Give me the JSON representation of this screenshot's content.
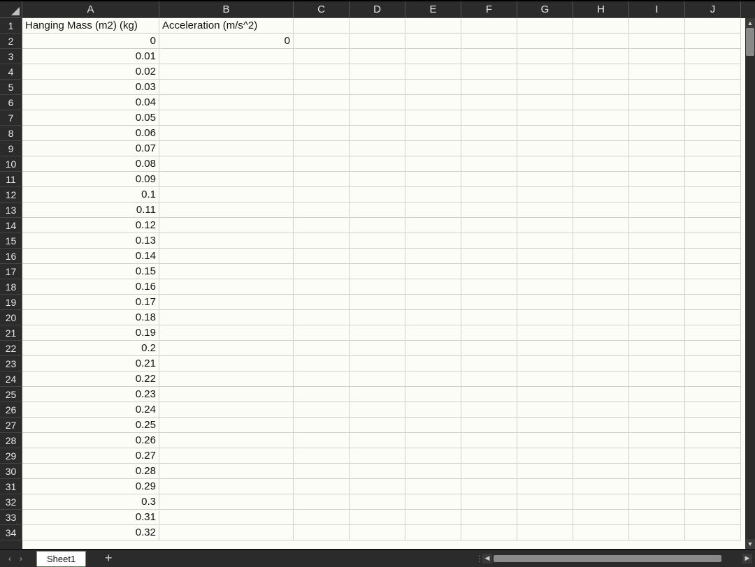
{
  "columns": [
    {
      "letter": "A",
      "width": 196
    },
    {
      "letter": "B",
      "width": 192
    },
    {
      "letter": "C",
      "width": 80
    },
    {
      "letter": "D",
      "width": 80
    },
    {
      "letter": "E",
      "width": 80
    },
    {
      "letter": "F",
      "width": 80
    },
    {
      "letter": "G",
      "width": 80
    },
    {
      "letter": "H",
      "width": 80
    },
    {
      "letter": "I",
      "width": 80
    },
    {
      "letter": "J",
      "width": 80
    }
  ],
  "visible_row_count": 34,
  "cells": {
    "A1": {
      "value": "Hanging Mass (m2) (kg)",
      "type": "txt"
    },
    "B1": {
      "value": "Acceleration (m/s^2)",
      "type": "txt"
    },
    "A2": {
      "value": "0",
      "type": "num"
    },
    "B2": {
      "value": "0",
      "type": "num"
    },
    "A3": {
      "value": "0.01",
      "type": "num"
    },
    "A4": {
      "value": "0.02",
      "type": "num"
    },
    "A5": {
      "value": "0.03",
      "type": "num"
    },
    "A6": {
      "value": "0.04",
      "type": "num"
    },
    "A7": {
      "value": "0.05",
      "type": "num"
    },
    "A8": {
      "value": "0.06",
      "type": "num"
    },
    "A9": {
      "value": "0.07",
      "type": "num"
    },
    "A10": {
      "value": "0.08",
      "type": "num"
    },
    "A11": {
      "value": "0.09",
      "type": "num"
    },
    "A12": {
      "value": "0.1",
      "type": "num"
    },
    "A13": {
      "value": "0.11",
      "type": "num"
    },
    "A14": {
      "value": "0.12",
      "type": "num"
    },
    "A15": {
      "value": "0.13",
      "type": "num"
    },
    "A16": {
      "value": "0.14",
      "type": "num"
    },
    "A17": {
      "value": "0.15",
      "type": "num"
    },
    "A18": {
      "value": "0.16",
      "type": "num"
    },
    "A19": {
      "value": "0.17",
      "type": "num"
    },
    "A20": {
      "value": "0.18",
      "type": "num"
    },
    "A21": {
      "value": "0.19",
      "type": "num"
    },
    "A22": {
      "value": "0.2",
      "type": "num"
    },
    "A23": {
      "value": "0.21",
      "type": "num"
    },
    "A24": {
      "value": "0.22",
      "type": "num"
    },
    "A25": {
      "value": "0.23",
      "type": "num"
    },
    "A26": {
      "value": "0.24",
      "type": "num"
    },
    "A27": {
      "value": "0.25",
      "type": "num"
    },
    "A28": {
      "value": "0.26",
      "type": "num"
    },
    "A29": {
      "value": "0.27",
      "type": "num"
    },
    "A30": {
      "value": "0.28",
      "type": "num"
    },
    "A31": {
      "value": "0.29",
      "type": "num"
    },
    "A32": {
      "value": "0.3",
      "type": "num"
    },
    "A33": {
      "value": "0.31",
      "type": "num"
    },
    "A34": {
      "value": "0.32",
      "type": "num"
    }
  },
  "sheet_tabs": {
    "active": "Sheet1",
    "tabs": [
      "Sheet1"
    ]
  },
  "colors": {
    "header_bg": "#2b2b2b",
    "header_fg": "#e8e8e8",
    "cell_bg": "#fdfdf8",
    "grid_line": "#d0d0d0",
    "active_tab_underline": "#3a7d3a"
  },
  "glyphs": {
    "nav_prev": "‹",
    "nav_next": "›",
    "add_tab": "+",
    "arrow_up": "▲",
    "arrow_down": "▼",
    "arrow_left": "◀",
    "arrow_right": "▶",
    "grip": "⋮"
  }
}
